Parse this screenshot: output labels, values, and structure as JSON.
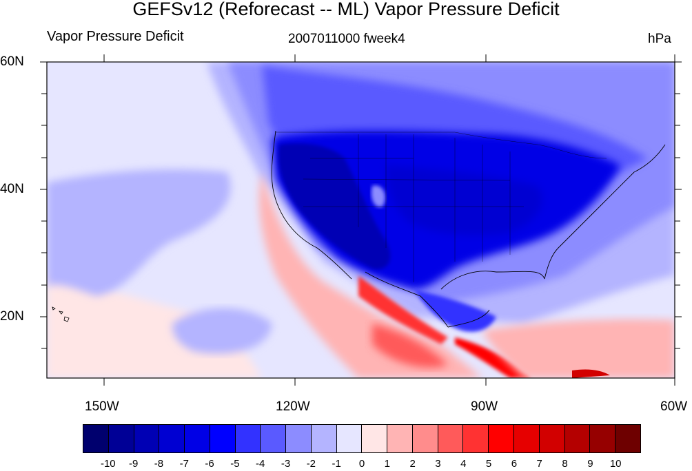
{
  "header": {
    "title": "GEFSv12 (Reforecast -- ML) Vapor Pressure Deficit",
    "left_string": "Vapor Pressure Deficit",
    "center_string": "2007011000 fweek4",
    "right_string": "hPa"
  },
  "axes": {
    "lat_labels": [
      "60N",
      "40N",
      "20N"
    ],
    "lon_labels": [
      "150W",
      "120W",
      "90W",
      "60W"
    ],
    "lat_range": [
      10,
      60
    ],
    "lon_range": [
      -160,
      -60
    ]
  },
  "colorbar": {
    "labels": [
      "-10",
      "-9",
      "-8",
      "-7",
      "-6",
      "-5",
      "-4",
      "-3",
      "-2",
      "-1",
      "0",
      "1",
      "2",
      "3",
      "4",
      "5",
      "6",
      "7",
      "8",
      "9",
      "10"
    ],
    "colors": [
      "#00006e",
      "#000096",
      "#0000b4",
      "#0000d2",
      "#0000e6",
      "#0000ff",
      "#3232ff",
      "#5a5aff",
      "#8c8cff",
      "#b4b4ff",
      "#e6e6ff",
      "#ffe6e6",
      "#ffb4b4",
      "#ff8c8c",
      "#ff5a5a",
      "#ff3232",
      "#ff0000",
      "#e60000",
      "#d20000",
      "#b40000",
      "#960000",
      "#6e0000"
    ]
  }
}
